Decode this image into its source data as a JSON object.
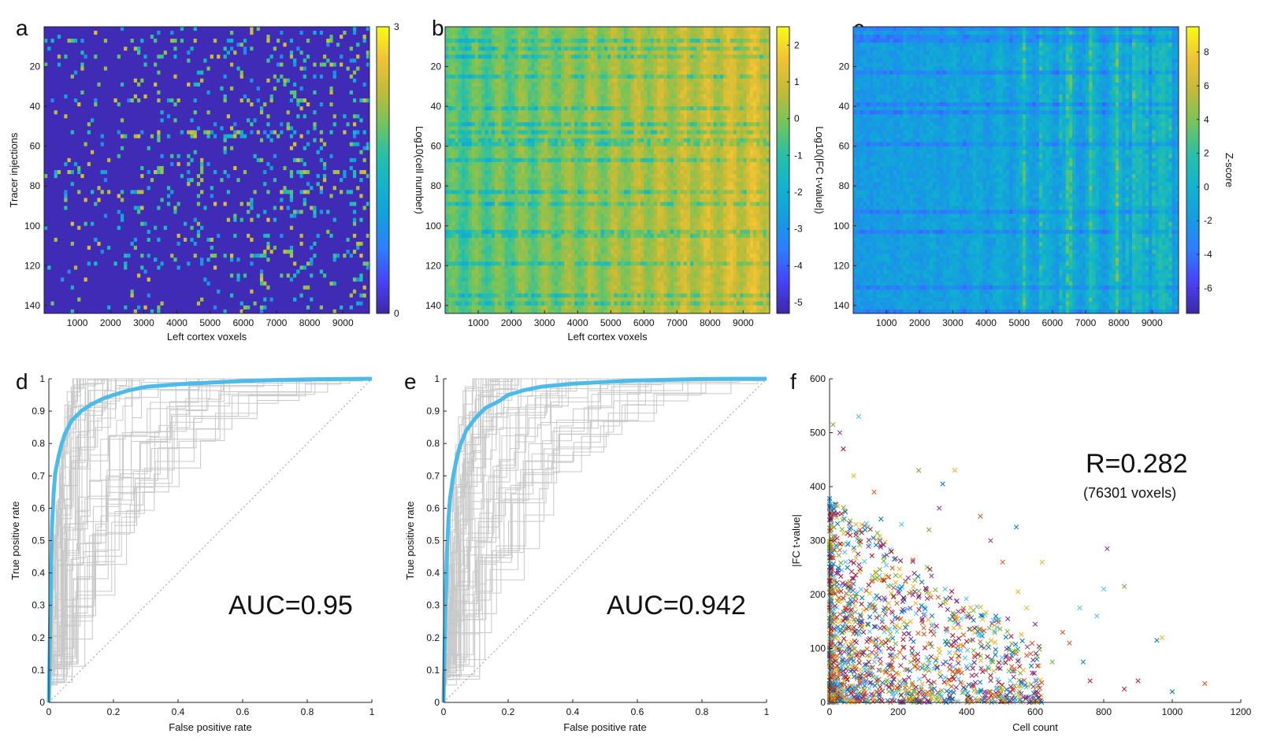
{
  "chart_data": [
    {
      "type": "heatmap",
      "panel": "a",
      "xlabel": "Left cortex voxels",
      "ylabel": "Tracer injections",
      "colorbar_label": "Log10(cell number)",
      "xlim": [
        0,
        9800
      ],
      "ylim": [
        0,
        144
      ],
      "x_ticks": [
        "1000",
        "2000",
        "3000",
        "4000",
        "5000",
        "6000",
        "7000",
        "8000",
        "9000"
      ],
      "y_ticks": [
        "20",
        "40",
        "60",
        "80",
        "100",
        "120",
        "140"
      ],
      "colorbar_ticks": [
        "3",
        "0"
      ],
      "colorbar_range": [
        0,
        3
      ],
      "colormap": "parula"
    },
    {
      "type": "heatmap",
      "panel": "b",
      "xlabel": "Left cortex voxels",
      "ylabel": "",
      "colorbar_label": "Log10(|FC t-value|)",
      "xlim": [
        0,
        9800
      ],
      "ylim": [
        0,
        144
      ],
      "x_ticks": [
        "1000",
        "2000",
        "3000",
        "4000",
        "5000",
        "6000",
        "7000",
        "8000",
        "9000"
      ],
      "y_ticks": [
        "20",
        "40",
        "60",
        "80",
        "100",
        "120",
        "140"
      ],
      "colorbar_ticks": [
        "2",
        "1",
        "0",
        "-1",
        "-2",
        "-3",
        "-4",
        "-5"
      ],
      "colorbar_range": [
        -5.3,
        2.5
      ],
      "colormap": "parula"
    },
    {
      "type": "heatmap",
      "panel": "c",
      "xlabel": "",
      "ylabel": "",
      "colorbar_label": "Z-score",
      "xlim": [
        0,
        9800
      ],
      "ylim": [
        0,
        144
      ],
      "x_ticks": [
        "1000",
        "2000",
        "3000",
        "4000",
        "5000",
        "6000",
        "7000",
        "8000",
        "9000"
      ],
      "y_ticks": [
        "20",
        "40",
        "60",
        "80",
        "100",
        "120",
        "140"
      ],
      "colorbar_ticks": [
        "8",
        "6",
        "4",
        "2",
        "0",
        "-2",
        "-4",
        "-6"
      ],
      "colorbar_range": [
        -7.5,
        9.5
      ],
      "colormap": "parula"
    },
    {
      "type": "line",
      "panel": "d",
      "xlabel": "False positive rate",
      "ylabel": "True positive rate",
      "xlim": [
        0,
        1
      ],
      "ylim": [
        0,
        1
      ],
      "x_ticks": [
        "0",
        "0.2",
        "0.4",
        "0.6",
        "0.8",
        "1"
      ],
      "y_ticks": [
        "0",
        "0.1",
        "0.2",
        "0.3",
        "0.4",
        "0.5",
        "0.6",
        "0.7",
        "0.8",
        "0.9",
        "1"
      ],
      "annotation": "AUC=0.95",
      "series": [
        {
          "color": "#4dbbe8",
          "style": "thick",
          "x": [
            0,
            0.005,
            0.01,
            0.015,
            0.02,
            0.03,
            0.04,
            0.05,
            0.07,
            0.1,
            0.13,
            0.17,
            0.2,
            0.25,
            0.3,
            0.4,
            0.5,
            0.6,
            0.7,
            0.8,
            0.9,
            1.0
          ],
          "y": [
            0,
            0.3,
            0.55,
            0.65,
            0.71,
            0.76,
            0.8,
            0.83,
            0.87,
            0.9,
            0.92,
            0.94,
            0.95,
            0.965,
            0.975,
            0.983,
            0.988,
            0.993,
            0.996,
            0.998,
            0.999,
            1.0
          ]
        },
        {
          "color": "#999999",
          "style": "dotted",
          "x": [
            0,
            1
          ],
          "y": [
            0,
            1
          ]
        }
      ]
    },
    {
      "type": "line",
      "panel": "e",
      "xlabel": "False positive rate",
      "ylabel": "True positive rate",
      "xlim": [
        0,
        1
      ],
      "ylim": [
        0,
        1
      ],
      "x_ticks": [
        "0",
        "0.2",
        "0.4",
        "0.6",
        "0.8",
        "1"
      ],
      "y_ticks": [
        "0",
        "0.1",
        "0.2",
        "0.3",
        "0.4",
        "0.5",
        "0.6",
        "0.7",
        "0.8",
        "0.9",
        "1"
      ],
      "annotation": "AUC=0.942",
      "series": [
        {
          "color": "#4dbbe8",
          "style": "thick",
          "x": [
            0,
            0.005,
            0.01,
            0.015,
            0.02,
            0.03,
            0.04,
            0.05,
            0.07,
            0.1,
            0.13,
            0.17,
            0.2,
            0.25,
            0.3,
            0.4,
            0.5,
            0.6,
            0.7,
            0.8,
            0.9,
            1.0
          ],
          "y": [
            0,
            0.25,
            0.45,
            0.56,
            0.63,
            0.7,
            0.75,
            0.79,
            0.84,
            0.88,
            0.91,
            0.93,
            0.95,
            0.965,
            0.975,
            0.985,
            0.99,
            0.995,
            0.997,
            0.999,
            1.0,
            1.0
          ]
        },
        {
          "color": "#999999",
          "style": "dotted",
          "x": [
            0,
            1
          ],
          "y": [
            0,
            1
          ]
        }
      ]
    },
    {
      "type": "scatter",
      "panel": "f",
      "xlabel": "Cell count",
      "ylabel": "|FC t-value|",
      "xlim": [
        0,
        1200
      ],
      "ylim": [
        0,
        600
      ],
      "x_ticks": [
        "0",
        "200",
        "400",
        "600",
        "800",
        "1000",
        "1200"
      ],
      "y_ticks": [
        "0",
        "100",
        "200",
        "300",
        "400",
        "500",
        "600"
      ],
      "annotation": "R=0.282",
      "annotation_sub": "(76301 voxels)",
      "marker": "x",
      "points": [
        [
          1000,
          20
        ],
        [
          1095,
          35
        ],
        [
          970,
          120
        ],
        [
          810,
          285
        ],
        [
          860,
          215
        ],
        [
          780,
          160
        ],
        [
          760,
          40
        ],
        [
          545,
          325
        ],
        [
          440,
          345
        ],
        [
          365,
          430
        ],
        [
          320,
          360
        ],
        [
          260,
          430
        ],
        [
          85,
          530
        ],
        [
          40,
          470
        ],
        [
          330,
          405
        ],
        [
          505,
          260
        ],
        [
          550,
          205
        ],
        [
          600,
          145
        ],
        [
          650,
          75
        ],
        [
          730,
          175
        ],
        [
          900,
          40
        ],
        [
          955,
          115
        ],
        [
          700,
          110
        ],
        [
          620,
          260
        ],
        [
          470,
          300
        ],
        [
          290,
          320
        ],
        [
          210,
          330
        ],
        [
          180,
          280
        ],
        [
          150,
          340
        ],
        [
          130,
          390
        ],
        [
          70,
          420
        ],
        [
          30,
          500
        ],
        [
          10,
          515
        ],
        [
          800,
          210
        ],
        [
          860,
          25
        ],
        [
          740,
          75
        ],
        [
          680,
          130
        ],
        [
          575,
          175
        ],
        [
          520,
          155
        ]
      ]
    }
  ],
  "colors": {
    "parula_stops": [
      "#3e26a8",
      "#4743f8",
      "#2d7dff",
      "#149ddf",
      "#11b3ce",
      "#29c0a5",
      "#76c45a",
      "#c2bb36",
      "#f1c335",
      "#f9fb15"
    ],
    "roc_highlight": "#4dbbe8",
    "roc_individual": "#c8c8c8",
    "scatter_palette": [
      "#0072bd",
      "#d95319",
      "#edb120",
      "#7e2f8e",
      "#77ac30",
      "#4dbeee",
      "#a2142f"
    ]
  }
}
